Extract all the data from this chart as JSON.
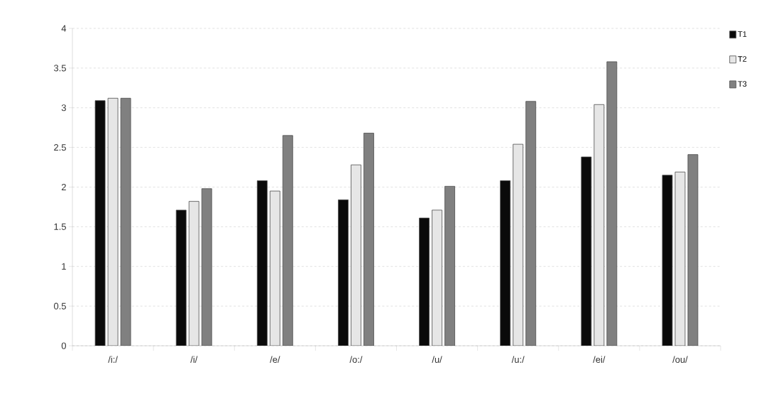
{
  "chart_data": {
    "type": "bar",
    "categories": [
      "/i:/",
      "/i/",
      "/e/",
      "/o:/",
      "/u/",
      "/u:/",
      "/ei/",
      "/ou/"
    ],
    "series": [
      {
        "name": "T1",
        "color": "#0a0a0a",
        "values": [
          3.09,
          1.71,
          2.08,
          1.84,
          1.61,
          2.08,
          2.38,
          2.15
        ]
      },
      {
        "name": "T2",
        "color": "#e6e6e6",
        "values": [
          3.12,
          1.82,
          1.95,
          2.28,
          1.71,
          2.54,
          3.04,
          2.19
        ]
      },
      {
        "name": "T3",
        "color": "#808080",
        "values": [
          3.12,
          1.98,
          2.65,
          2.68,
          2.01,
          3.08,
          3.58,
          2.41
        ]
      }
    ],
    "ylim": [
      0,
      4
    ],
    "yticks": [
      0,
      0.5,
      1,
      1.5,
      2,
      2.5,
      3,
      3.5,
      4
    ],
    "grid": "y",
    "legend": "right"
  }
}
